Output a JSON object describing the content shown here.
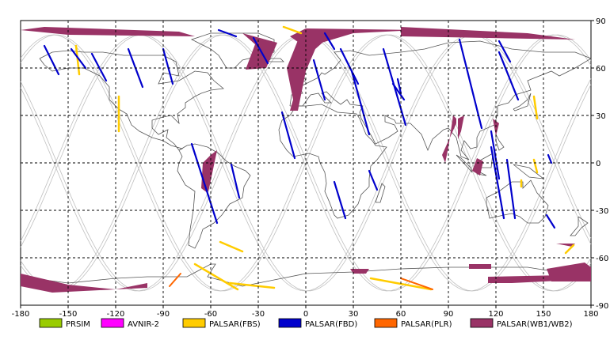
{
  "map": {
    "lon_range": [
      -180,
      180
    ],
    "lat_range": [
      -90,
      90
    ],
    "x_ticks": [
      "-180",
      "-150",
      "-120",
      "-90",
      "-60",
      "-30",
      "0",
      "30",
      "60",
      "90",
      "120",
      "150",
      "180"
    ],
    "y_ticks": [
      "90",
      "60",
      "30",
      "0",
      "-30",
      "-60",
      "-90"
    ],
    "grid": "dashed",
    "colors": {
      "land_outline": "#555555",
      "orbit_track": "#c0c0c0",
      "PRSIM": "#99cc00",
      "AVNIR-2": "#ff00ff",
      "PALSAR(FBS)": "#ffcc00",
      "PALSAR(FBD)": "#0000cc",
      "PALSAR(PLR)": "#ff6600",
      "PALSAR(WB1/WB2)": "#993366"
    }
  },
  "legend": [
    {
      "label": "PRSIM",
      "color": "#99cc00"
    },
    {
      "label": "AVNIR-2",
      "color": "#ff00ff"
    },
    {
      "label": "PALSAR(FBS)",
      "color": "#ffcc00"
    },
    {
      "label": "PALSAR(FBD)",
      "color": "#0000cc"
    },
    {
      "label": "PALSAR(PLR)",
      "color": "#ff6600"
    },
    {
      "label": "PALSAR(WB1/WB2)",
      "color": "#993366"
    }
  ],
  "acquisitions": {
    "fbd": [
      [
        [
          -165,
          74
        ],
        [
          -156,
          56
        ]
      ],
      [
        [
          -148,
          72
        ],
        [
          -139,
          60
        ]
      ],
      [
        [
          -135,
          69
        ],
        [
          -126,
          52
        ]
      ],
      [
        [
          -112,
          72
        ],
        [
          -103,
          48
        ]
      ],
      [
        [
          -90,
          72
        ],
        [
          -84,
          50
        ]
      ],
      [
        [
          -55,
          84
        ],
        [
          -44,
          80
        ]
      ],
      [
        [
          -33,
          79
        ],
        [
          -24,
          63
        ]
      ],
      [
        [
          5,
          65
        ],
        [
          12,
          40
        ]
      ],
      [
        [
          12,
          82
        ],
        [
          18,
          72
        ]
      ],
      [
        [
          22,
          72
        ],
        [
          33,
          50
        ]
      ],
      [
        [
          29,
          58
        ],
        [
          40,
          18
        ]
      ],
      [
        [
          49,
          72
        ],
        [
          63,
          24
        ]
      ],
      [
        [
          -15,
          32
        ],
        [
          -7,
          3
        ]
      ],
      [
        [
          55,
          50
        ],
        [
          62,
          40
        ]
      ],
      [
        [
          97,
          78
        ],
        [
          111,
          22
        ]
      ],
      [
        [
          122,
          77
        ],
        [
          129,
          64
        ]
      ],
      [
        [
          122,
          70
        ],
        [
          134,
          40
        ]
      ],
      [
        [
          -72,
          12
        ],
        [
          -56,
          -38
        ]
      ],
      [
        [
          -47,
          -1
        ],
        [
          -42,
          -22
        ]
      ],
      [
        [
          58,
          53
        ],
        [
          60,
          44
        ]
      ],
      [
        [
          117,
          10
        ],
        [
          125,
          -35
        ]
      ],
      [
        [
          127,
          2
        ],
        [
          132,
          -35
        ]
      ],
      [
        [
          122,
          -10
        ],
        [
          117,
          20
        ]
      ],
      [
        [
          152,
          -33
        ],
        [
          157,
          -41
        ]
      ],
      [
        [
          18,
          -12
        ],
        [
          25,
          -35
        ]
      ],
      [
        [
          153,
          5
        ],
        [
          155,
          0
        ]
      ],
      [
        [
          40,
          -5
        ],
        [
          45,
          -17
        ]
      ]
    ],
    "fbs": [
      [
        [
          -145,
          74
        ],
        [
          -143,
          56
        ]
      ],
      [
        [
          -118,
          20
        ],
        [
          -118,
          42
        ]
      ],
      [
        [
          -14,
          86
        ],
        [
          -3,
          82
        ]
      ],
      [
        [
          -70,
          -64
        ],
        [
          -43,
          -80
        ]
      ],
      [
        [
          -54,
          -50
        ],
        [
          -40,
          -56
        ]
      ],
      [
        [
          -48,
          -76
        ],
        [
          -20,
          -79
        ]
      ],
      [
        [
          41,
          -73
        ],
        [
          79,
          -80
        ]
      ],
      [
        [
          144,
          2
        ],
        [
          146,
          -6
        ]
      ],
      [
        [
          144,
          42
        ],
        [
          146,
          28
        ]
      ],
      [
        [
          164,
          -57
        ],
        [
          169,
          -52
        ]
      ],
      [
        [
          136,
          -11
        ],
        [
          136,
          -15
        ]
      ]
    ],
    "plr": [
      [
        [
          -79,
          -70
        ],
        [
          -86,
          -78
        ]
      ],
      [
        [
          60,
          -73
        ],
        [
          80,
          -80
        ]
      ]
    ],
    "wb": [
      [
        [
          -165,
          86
        ],
        [
          -80,
          83
        ],
        [
          -70,
          80
        ],
        [
          -150,
          81
        ],
        [
          -180,
          84
        ]
      ],
      [
        [
          -40,
          82
        ],
        [
          -18,
          76
        ],
        [
          -25,
          60
        ],
        [
          -38,
          59
        ],
        [
          -32,
          75
        ]
      ],
      [
        [
          0,
          73
        ],
        [
          30,
          82
        ],
        [
          70,
          84
        ],
        [
          0,
          85
        ],
        [
          -10,
          80
        ]
      ],
      [
        [
          -5,
          33
        ],
        [
          0,
          58
        ],
        [
          6,
          72
        ],
        [
          15,
          80
        ],
        [
          -4,
          80
        ],
        [
          -12,
          60
        ],
        [
          -8,
          40
        ],
        [
          -10,
          33
        ]
      ],
      [
        [
          60,
          86
        ],
        [
          140,
          82
        ],
        [
          170,
          78
        ],
        [
          60,
          80
        ]
      ],
      [
        [
          95,
          25
        ],
        [
          95,
          28
        ],
        [
          93,
          30
        ],
        [
          90,
          10
        ],
        [
          88,
          0
        ],
        [
          86,
          5
        ]
      ],
      [
        [
          96,
          28
        ],
        [
          100,
          30
        ],
        [
          98,
          20
        ],
        [
          96,
          15
        ]
      ],
      [
        [
          118,
          28
        ],
        [
          122,
          25
        ],
        [
          120,
          17
        ]
      ],
      [
        [
          105,
          -5
        ],
        [
          110,
          -8
        ],
        [
          112,
          1
        ],
        [
          108,
          3
        ]
      ],
      [
        [
          -65,
          0
        ],
        [
          -60,
          5
        ],
        [
          -56,
          8
        ],
        [
          -61,
          -16
        ],
        [
          -62,
          -19
        ],
        [
          -66,
          -16
        ]
      ],
      [
        [
          -180,
          -70
        ],
        [
          -150,
          -77
        ],
        [
          -120,
          -80
        ],
        [
          -100,
          -76
        ],
        [
          -100,
          -79
        ],
        [
          -160,
          -82
        ],
        [
          -180,
          -78
        ]
      ],
      [
        [
          115,
          -72
        ],
        [
          162,
          -71
        ],
        [
          170,
          -74
        ],
        [
          130,
          -76
        ],
        [
          115,
          -76
        ]
      ],
      [
        [
          152,
          -67
        ],
        [
          176,
          -63
        ],
        [
          180,
          -66
        ],
        [
          180,
          -75
        ],
        [
          155,
          -75
        ]
      ],
      [
        [
          28,
          -67
        ],
        [
          40,
          -67
        ],
        [
          38,
          -70
        ],
        [
          30,
          -70
        ]
      ],
      [
        [
          103,
          -64
        ],
        [
          117,
          -64
        ],
        [
          117,
          -67
        ],
        [
          103,
          -67
        ]
      ],
      [
        [
          158,
          -51
        ],
        [
          170,
          -51
        ],
        [
          168,
          -53
        ]
      ]
    ]
  }
}
